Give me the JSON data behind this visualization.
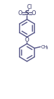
{
  "bg_color": "#ffffff",
  "line_color": "#5a5a8a",
  "text_color": "#3a3a6a",
  "line_width": 1.1,
  "fig_width": 0.8,
  "fig_height": 1.45,
  "dpi": 100,
  "xlim": [
    0,
    80
  ],
  "ylim": [
    0,
    145
  ]
}
